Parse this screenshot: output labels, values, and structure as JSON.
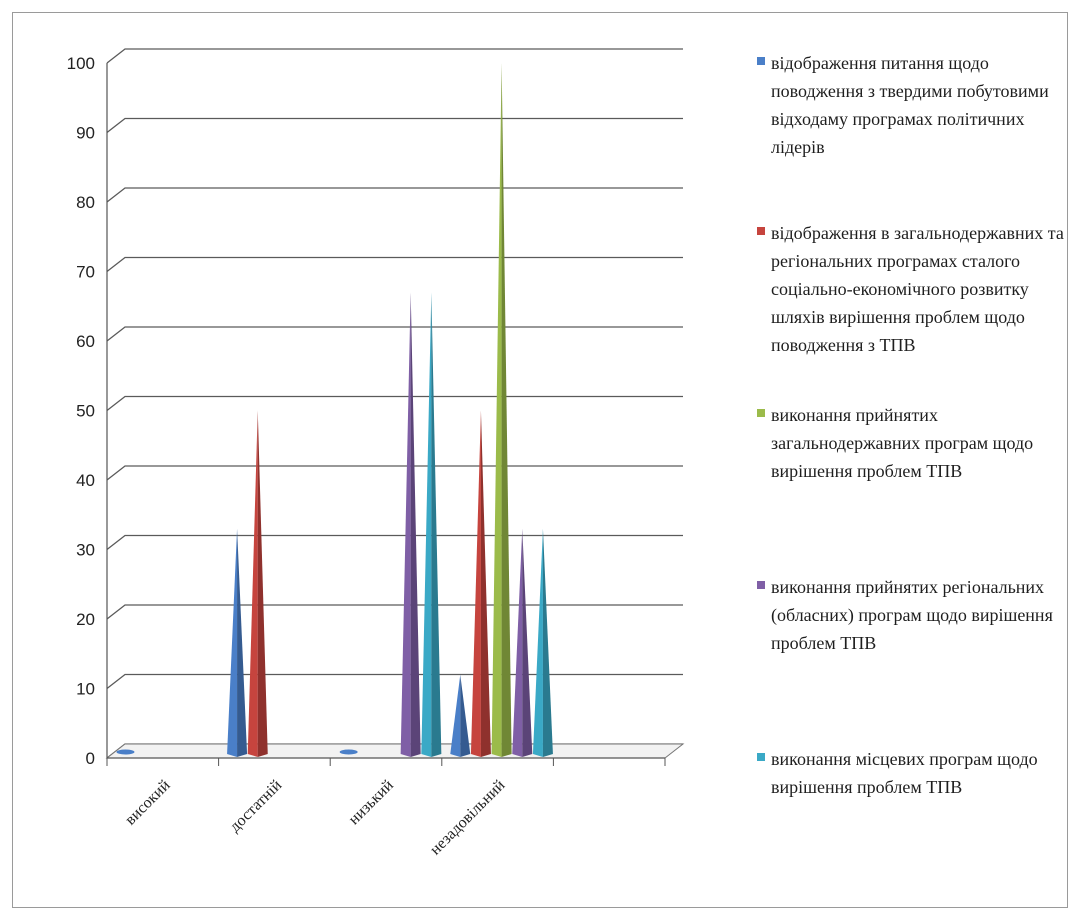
{
  "chart_data": {
    "type": "bar",
    "bar_shape": "cone",
    "categories": [
      "високий",
      "достатній",
      "низький",
      "незадовільний"
    ],
    "ylim": [
      0,
      100
    ],
    "yticks": [
      "0",
      "10",
      "20",
      "30",
      "40",
      "50",
      "60",
      "70",
      "80",
      "90",
      "100"
    ],
    "grid": true,
    "legend_position": "right",
    "series": [
      {
        "name": "відображення питання щодо поводження з твердими побутовими відходаму програмах політичних лідерів",
        "color": "#4a7fc8",
        "values": [
          0,
          33,
          0,
          12
        ]
      },
      {
        "name": "відображення в загальнодержавних та регіональних програмах сталого соціально-економічного розвитку шляхів вирішення проблем щодо поводження з ТПВ",
        "color": "#c6443e",
        "values": [
          null,
          50,
          null,
          50
        ]
      },
      {
        "name": "виконання прийнятих загальнодержавних програм щодо вирішення проблем ТПВ",
        "color": "#9bbb4a",
        "values": [
          null,
          null,
          null,
          100
        ]
      },
      {
        "name": "виконання прийнятих регіональних (обласних) програм щодо вирішення проблем ТПВ",
        "color": "#7f5fa6",
        "values": [
          null,
          null,
          67,
          33
        ]
      },
      {
        "name": "виконання місцевих програм щодо вирішення проблем ТПВ",
        "color": "#3aa9c6",
        "values": [
          null,
          null,
          67,
          33
        ]
      }
    ]
  }
}
